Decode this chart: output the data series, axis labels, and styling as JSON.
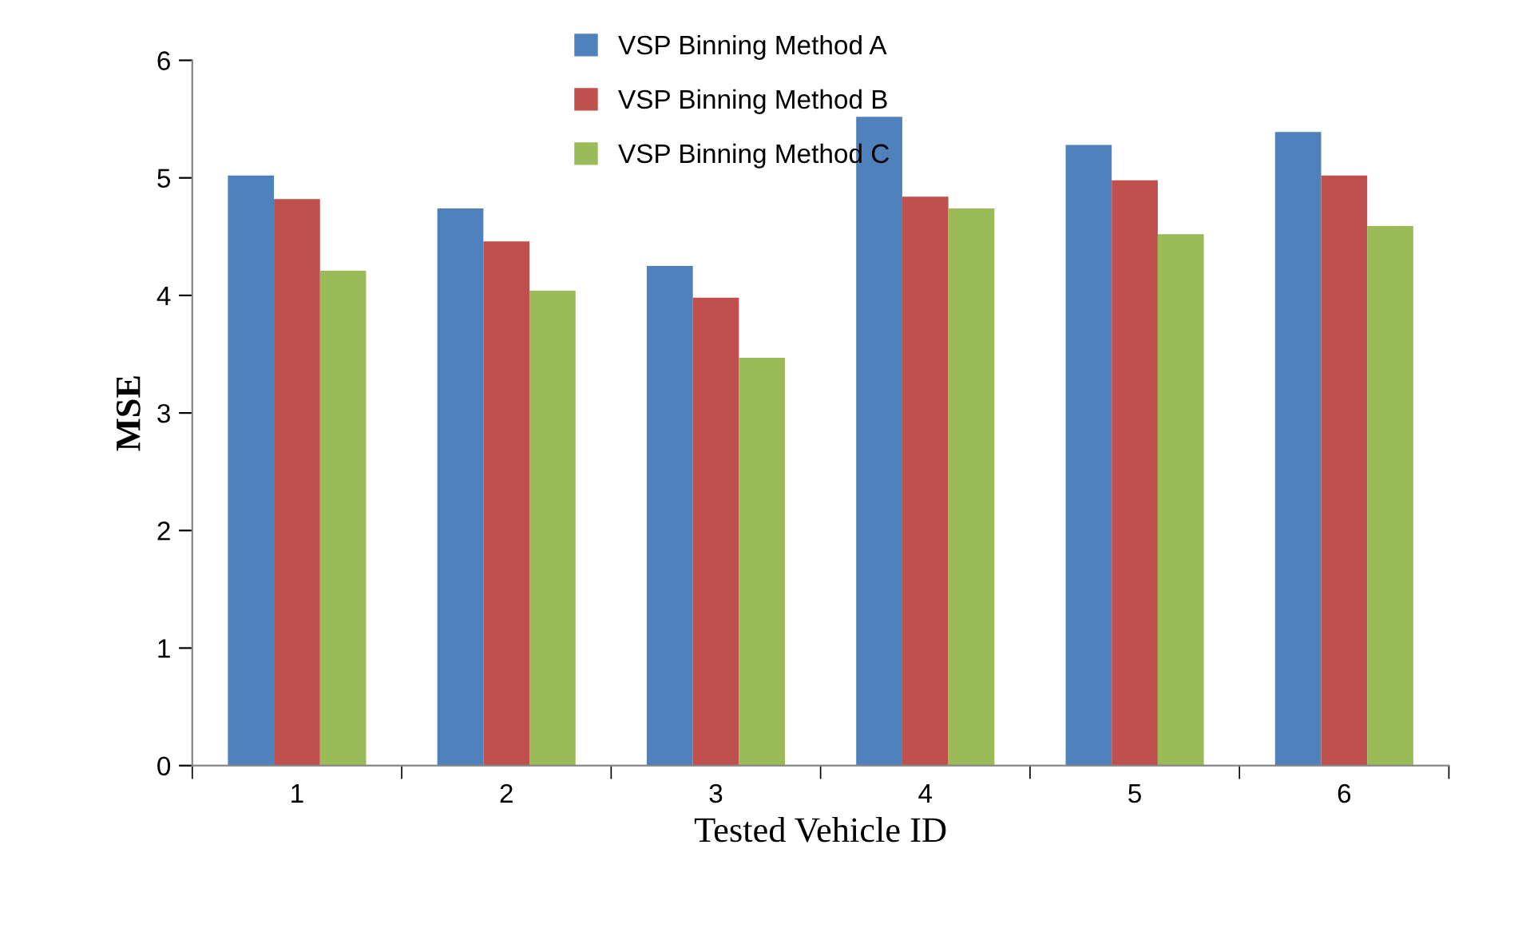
{
  "chart_data": {
    "type": "bar",
    "xlabel": "Tested Vehicle ID",
    "ylabel": "MSE",
    "categories": [
      "1",
      "2",
      "3",
      "4",
      "5",
      "6"
    ],
    "series": [
      {
        "name": "VSP Binning Method A",
        "color": "#4f81bd",
        "values": [
          5.02,
          4.74,
          4.25,
          5.52,
          5.28,
          5.39
        ]
      },
      {
        "name": "VSP Binning Method B",
        "color": "#c0504d",
        "values": [
          4.82,
          4.46,
          3.98,
          4.84,
          4.98,
          5.02
        ]
      },
      {
        "name": "VSP Binning Method C",
        "color": "#9bbb59",
        "values": [
          4.21,
          4.04,
          3.47,
          4.74,
          4.52,
          4.59
        ]
      }
    ],
    "ylim": [
      0,
      6
    ],
    "yticks": [
      0,
      1,
      2,
      3,
      4,
      5,
      6
    ],
    "grid": false,
    "legend": "top"
  }
}
